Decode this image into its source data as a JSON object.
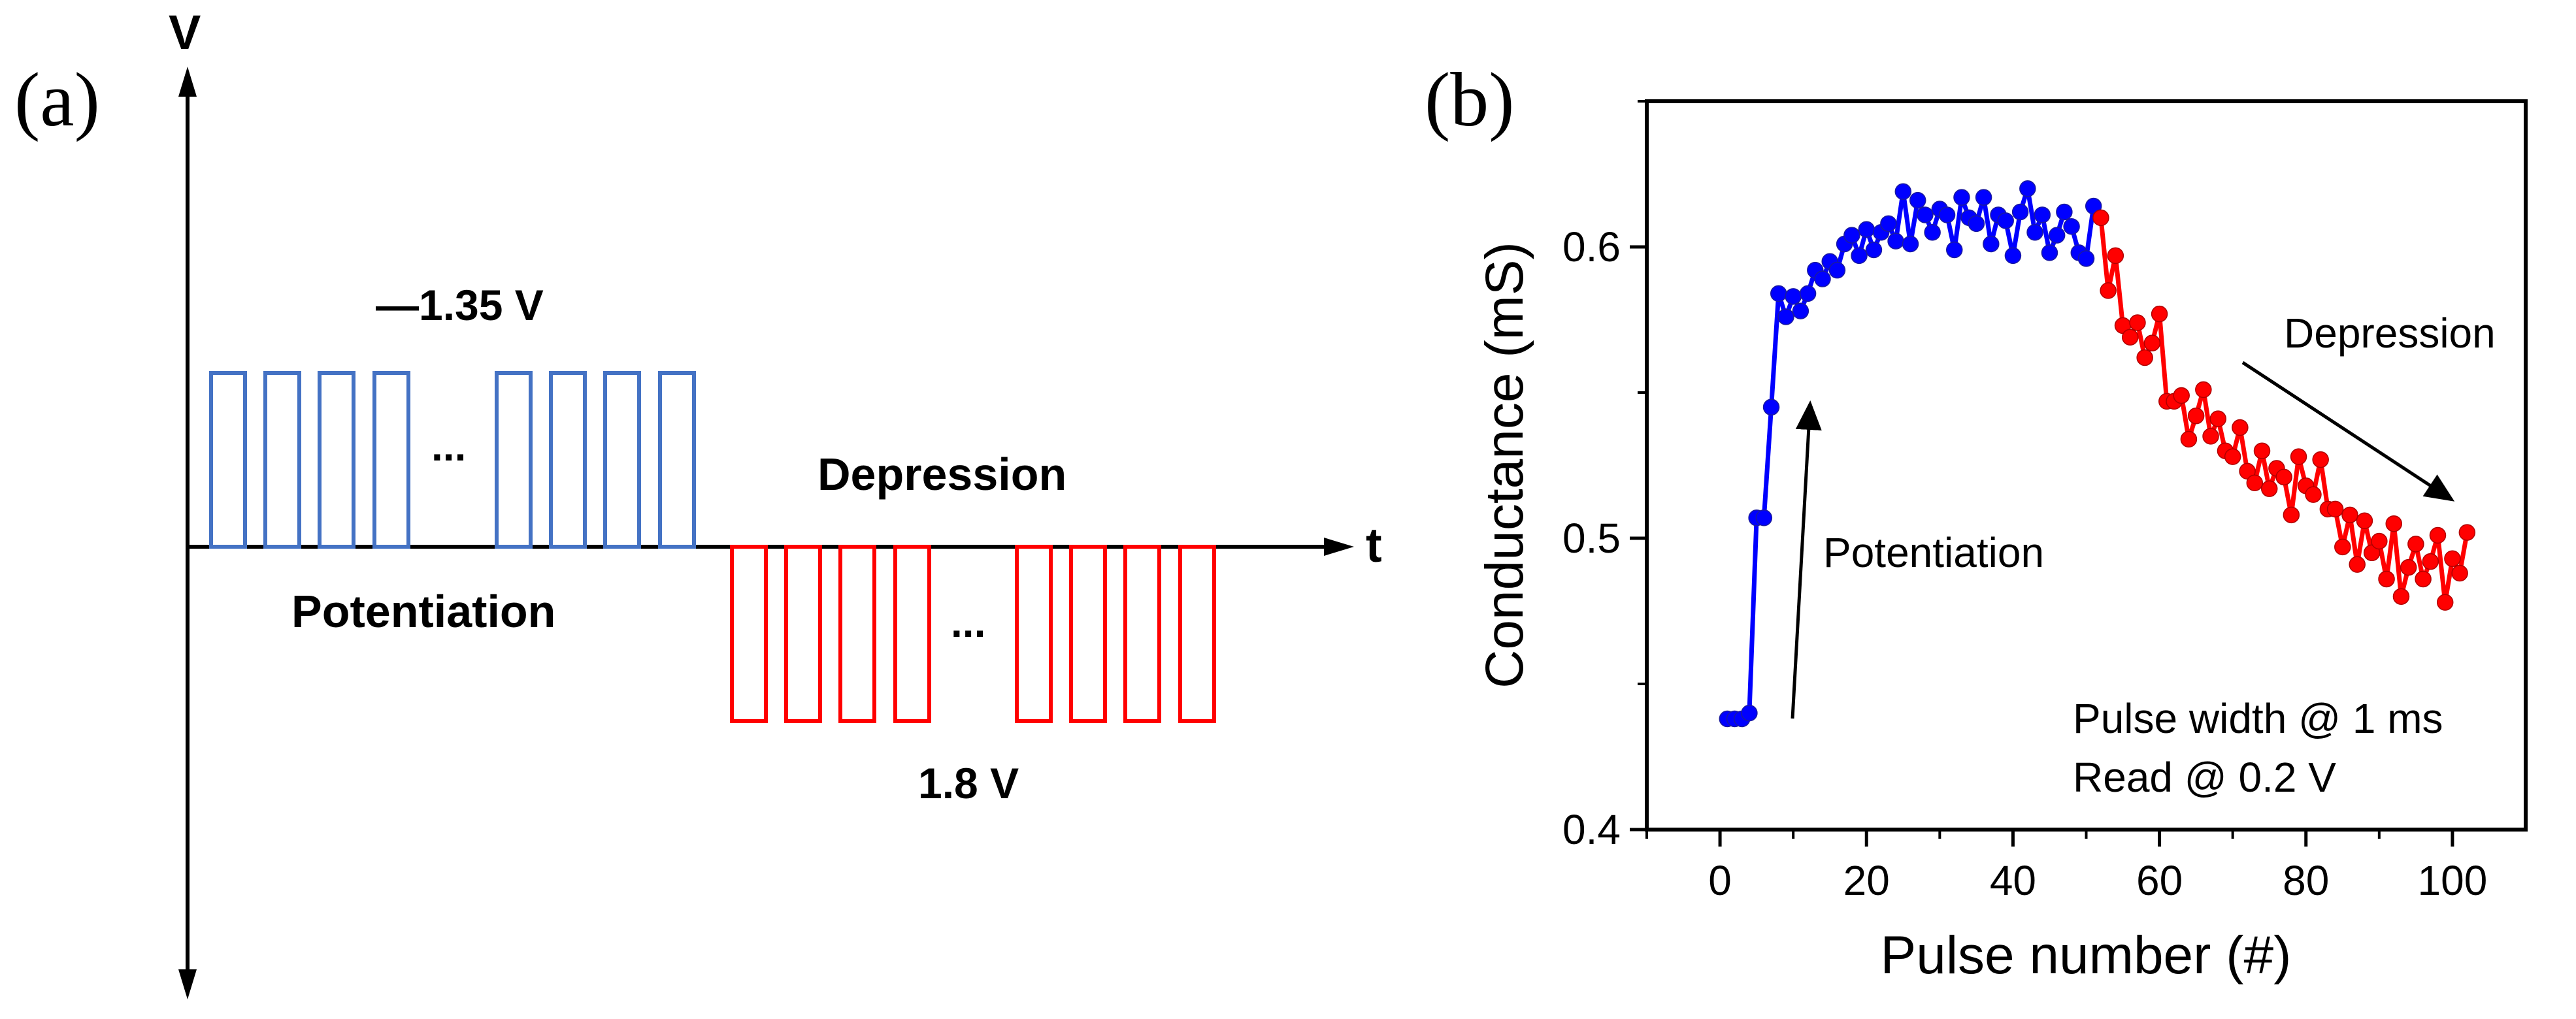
{
  "panel_a": {
    "label": "(a)",
    "y_axis_label": "V",
    "x_axis_label": "t",
    "potentiation_voltage": "—1.35 V",
    "depression_voltage": "1.8 V",
    "potentiation_label": "Potentiation",
    "depression_label": "Depression",
    "ellipsis": "...",
    "colors": {
      "potentiation": "#4472C4",
      "depression": "#FF0000",
      "axis": "#000000"
    }
  },
  "panel_b": {
    "label": "(b)",
    "annotations": {
      "potentiation": "Potentiation",
      "depression": "Depression",
      "pulse_width": "Pulse width @ 1 ms",
      "read": "Read @ 0.2 V"
    }
  },
  "chart_data": {
    "type": "line",
    "title": "",
    "xlabel": "Pulse number (#)",
    "ylabel": "Conductance (mS)",
    "xlim": [
      -10,
      110
    ],
    "ylim": [
      0.4,
      0.65
    ],
    "xticks": [
      0,
      20,
      40,
      60,
      80,
      100
    ],
    "yticks": [
      0.4,
      0.5,
      0.6
    ],
    "xtick_labels": [
      "0",
      "20",
      "40",
      "60",
      "80",
      "100"
    ],
    "ytick_labels": [
      "0.4",
      "0.5",
      "0.6"
    ],
    "series": [
      {
        "name": "Potentiation",
        "color": "#0000FF",
        "x": [
          1,
          2,
          3,
          4,
          5,
          6,
          7,
          8,
          9,
          10,
          11,
          12,
          13,
          14,
          15,
          16,
          17,
          18,
          19,
          20,
          21,
          22,
          23,
          24,
          25,
          26,
          27,
          28,
          29,
          30,
          31,
          32,
          33,
          34,
          35,
          36,
          37,
          38,
          39,
          40,
          41,
          42,
          43,
          44,
          45,
          46,
          47,
          48,
          49,
          50,
          51
        ],
        "y": [
          0.438,
          0.438,
          0.438,
          0.44,
          0.507,
          0.507,
          0.545,
          0.584,
          0.576,
          0.583,
          0.578,
          0.584,
          0.592,
          0.589,
          0.595,
          0.592,
          0.601,
          0.604,
          0.597,
          0.606,
          0.599,
          0.605,
          0.608,
          0.602,
          0.619,
          0.601,
          0.616,
          0.611,
          0.605,
          0.613,
          0.611,
          0.599,
          0.617,
          0.61,
          0.608,
          0.617,
          0.601,
          0.611,
          0.609,
          0.597,
          0.612,
          0.62,
          0.605,
          0.611,
          0.598,
          0.604,
          0.612,
          0.607,
          0.598,
          0.596,
          0.614
        ]
      },
      {
        "name": "Depression",
        "color": "#FF0000",
        "x": [
          52,
          53,
          54,
          55,
          56,
          57,
          58,
          59,
          60,
          61,
          62,
          63,
          64,
          65,
          66,
          67,
          68,
          69,
          70,
          71,
          72,
          73,
          74,
          75,
          76,
          77,
          78,
          79,
          80,
          81,
          82,
          83,
          84,
          85,
          86,
          87,
          88,
          89,
          90,
          91,
          92,
          93,
          94,
          95,
          96,
          97,
          98,
          99,
          100,
          101,
          102
        ],
        "y": [
          0.61,
          0.585,
          0.597,
          0.573,
          0.569,
          0.574,
          0.562,
          0.567,
          0.577,
          0.547,
          0.547,
          0.549,
          0.534,
          0.542,
          0.551,
          0.535,
          0.541,
          0.53,
          0.528,
          0.538,
          0.523,
          0.519,
          0.53,
          0.517,
          0.524,
          0.521,
          0.508,
          0.528,
          0.518,
          0.515,
          0.527,
          0.51,
          0.51,
          0.497,
          0.508,
          0.491,
          0.506,
          0.495,
          0.499,
          0.486,
          0.505,
          0.48,
          0.49,
          0.498,
          0.486,
          0.492,
          0.501,
          0.478,
          0.493,
          0.488,
          0.502
        ]
      }
    ]
  }
}
